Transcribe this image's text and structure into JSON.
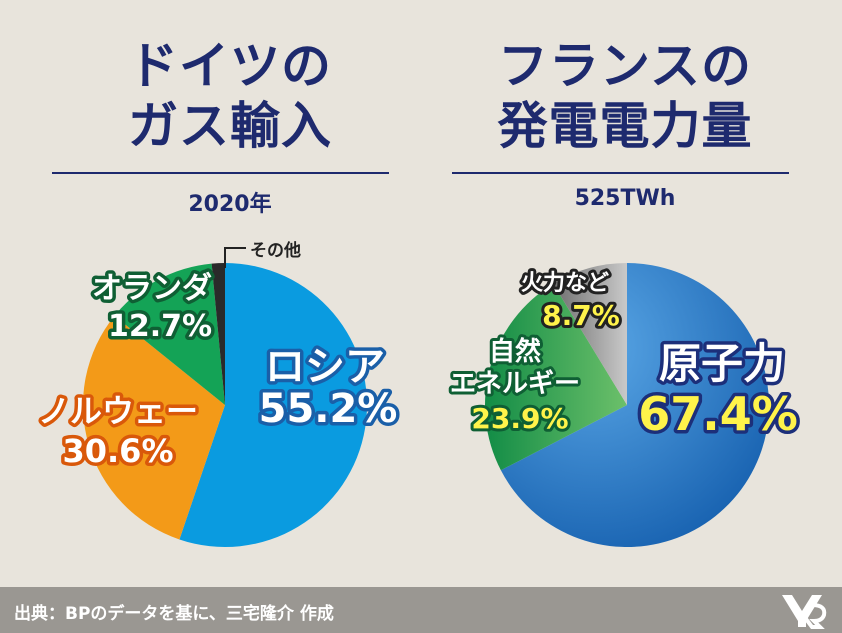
{
  "chart_data": [
    {
      "type": "pie",
      "title": "ドイツのガス輸入",
      "title_lines": [
        "ドイツの",
        "ガス輸入"
      ],
      "subtitle": "2020年",
      "slices": [
        {
          "label": "ロシア",
          "value": 55.2,
          "value_label": "55.2%",
          "color": "#0a9be0"
        },
        {
          "label": "ノルウェー",
          "value": 30.6,
          "value_label": "30.6%",
          "color": "#f39a18"
        },
        {
          "label": "オランダ",
          "value": 12.7,
          "value_label": "12.7%",
          "color": "#14a356"
        },
        {
          "label": "その他",
          "value": 1.5,
          "value_label": "",
          "color": "#2a2a2a"
        }
      ]
    },
    {
      "type": "pie",
      "title": "フランスの発電電力量",
      "title_lines": [
        "フランスの",
        "発電電力量"
      ],
      "subtitle": "525TWh",
      "slices": [
        {
          "label": "原子力",
          "value": 67.4,
          "value_label": "67.4%",
          "color": "#1f6fbf"
        },
        {
          "label": "自然エネルギー",
          "value": 23.9,
          "value_label": "23.9%",
          "color": "#1f9e55"
        },
        {
          "label": "火力など",
          "value": 8.7,
          "value_label": "8.7%",
          "color": "#8b8b8b"
        }
      ]
    }
  ],
  "footer": {
    "source": "出典：BPのデータを基に、三宅隆介 作成"
  },
  "logo": {
    "icon": "author-logo-icon"
  }
}
